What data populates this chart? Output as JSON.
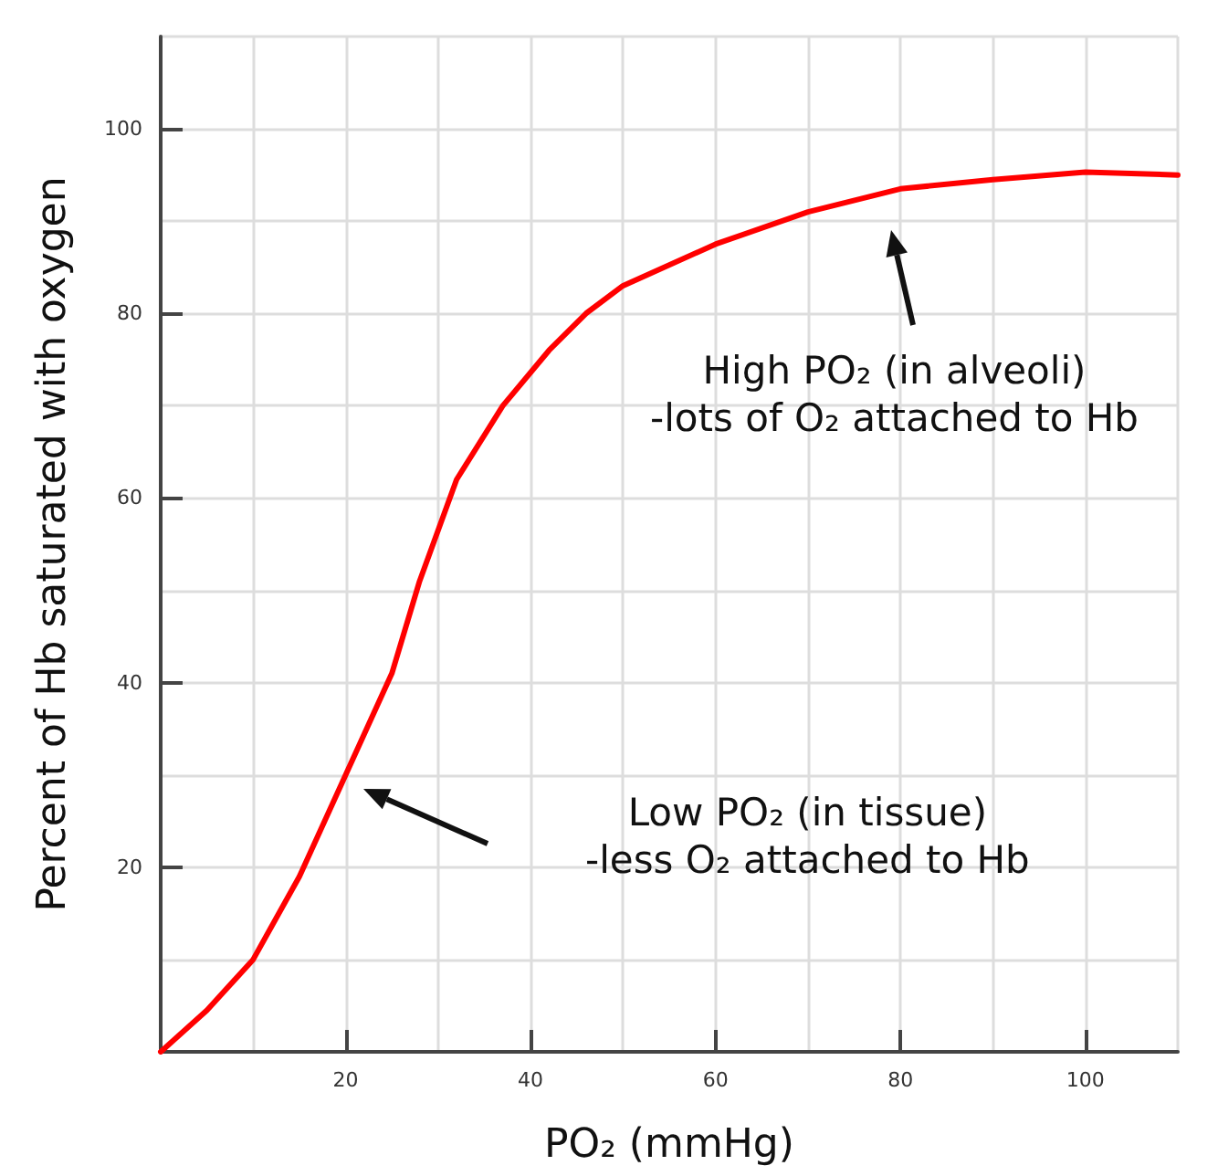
{
  "chart_data": {
    "type": "line",
    "xlabel": "PO₂ (mmHg)",
    "ylabel": "Percent of Hb saturated with oxygen",
    "x": [
      0,
      5,
      10,
      15,
      20,
      25,
      28,
      32,
      37,
      42,
      46,
      50,
      60,
      70,
      80,
      90,
      100,
      110
    ],
    "series": [
      {
        "color": "#ff0000",
        "values": [
          0,
          4.5,
          10,
          19,
          30,
          41,
          51,
          62,
          70,
          76,
          80,
          83,
          87.5,
          91,
          93.5,
          94.5,
          95.3,
          95
        ]
      }
    ],
    "xlim": [
      0,
      110
    ],
    "ylim": [
      0,
      110
    ],
    "xticks": [
      {
        "value": 0,
        "label": null
      },
      {
        "value": 10,
        "label": null
      },
      20,
      {
        "value": 30,
        "label": null
      },
      40,
      {
        "value": 50,
        "label": null
      },
      60,
      {
        "value": 70,
        "label": null
      },
      80,
      {
        "value": 90,
        "label": null
      },
      100,
      {
        "value": 110,
        "label": null
      }
    ],
    "yticks": [
      {
        "value": 0,
        "label": null
      },
      {
        "value": 10,
        "label": null
      },
      20,
      {
        "value": 30,
        "label": null
      },
      40,
      {
        "value": 50,
        "label": null
      },
      60,
      {
        "value": 70,
        "label": null
      },
      80,
      {
        "value": 90,
        "label": null
      },
      100,
      {
        "value": 110,
        "label": null
      }
    ],
    "annotations": [
      "High PO₂ (in alveoli)\n-lots of O₂ attached to Hb",
      "Low PO₂ (in tissue)\n-less O₂ attached to Hb"
    ],
    "grid": true,
    "marker": "none",
    "line_style": "solid"
  }
}
